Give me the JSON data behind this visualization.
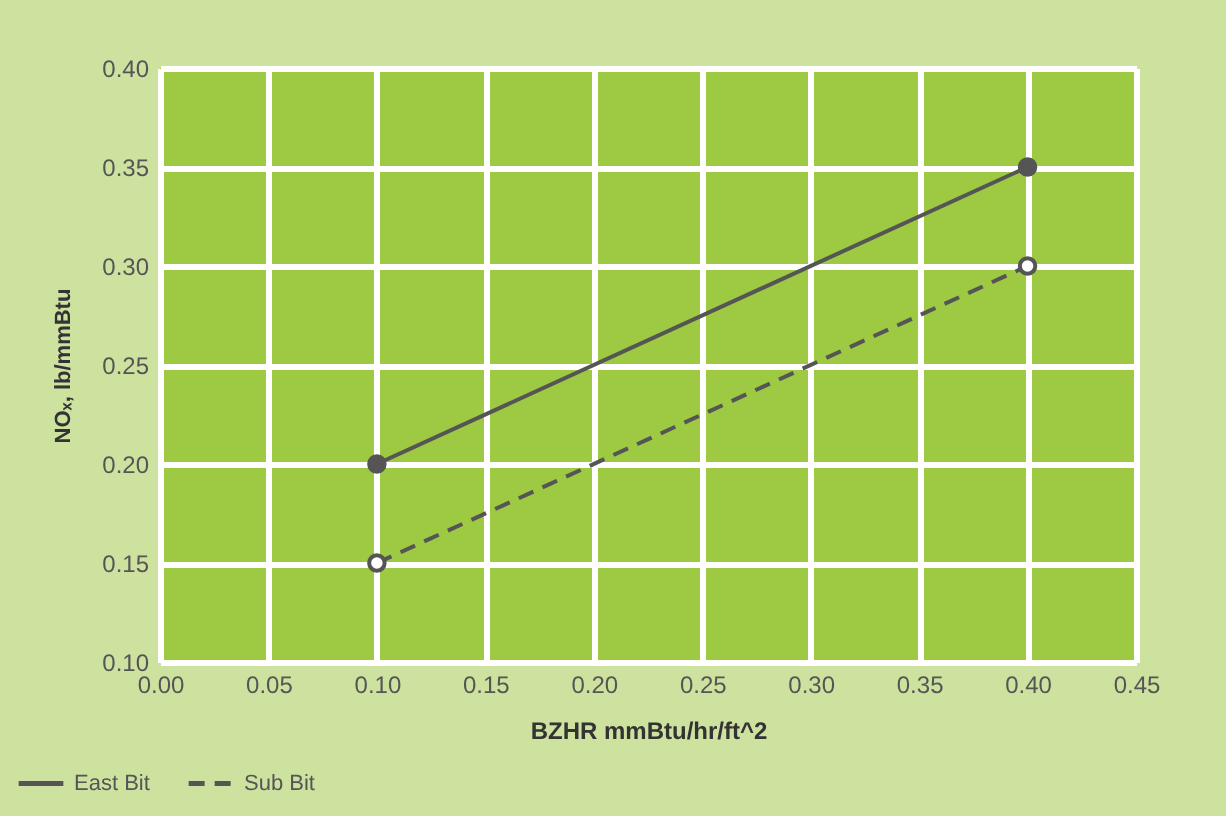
{
  "chart_data": {
    "type": "line",
    "xlabel": "BZHR mmBtu/hr/ft^2",
    "ylabel": "NOₓ, lb/mmBtu",
    "x": [
      0.1,
      0.4
    ],
    "series": [
      {
        "name": "East Bit",
        "color": "#555555",
        "values": [
          0.2,
          0.35
        ],
        "line_style": "solid"
      },
      {
        "name": "Sub Bit",
        "color": "#555555",
        "values": [
          0.15,
          0.3
        ],
        "line_style": "dashed"
      }
    ],
    "xlim": [
      0,
      0.45
    ],
    "xticks": [
      {
        "value": 0,
        "label": "0.00"
      },
      0.05,
      {
        "value": 0.1,
        "label": "0.10"
      },
      0.15,
      {
        "value": 0.2,
        "label": "0.20"
      },
      0.25,
      {
        "value": 0.3,
        "label": "0.30"
      },
      0.35,
      {
        "value": 0.4,
        "label": "0.40"
      },
      0.45
    ],
    "ylim": [
      0.1,
      0.4
    ],
    "yticks": [
      {
        "value": 0.1,
        "label": "0.10"
      },
      0.15,
      {
        "value": 0.2,
        "label": "0.20"
      },
      0.25,
      {
        "value": 0.3,
        "label": "0.30"
      },
      0.35,
      {
        "value": 0.4,
        "label": "0.40"
      }
    ],
    "grid": true,
    "legend": "bottom left",
    "marker": "circle"
  }
}
